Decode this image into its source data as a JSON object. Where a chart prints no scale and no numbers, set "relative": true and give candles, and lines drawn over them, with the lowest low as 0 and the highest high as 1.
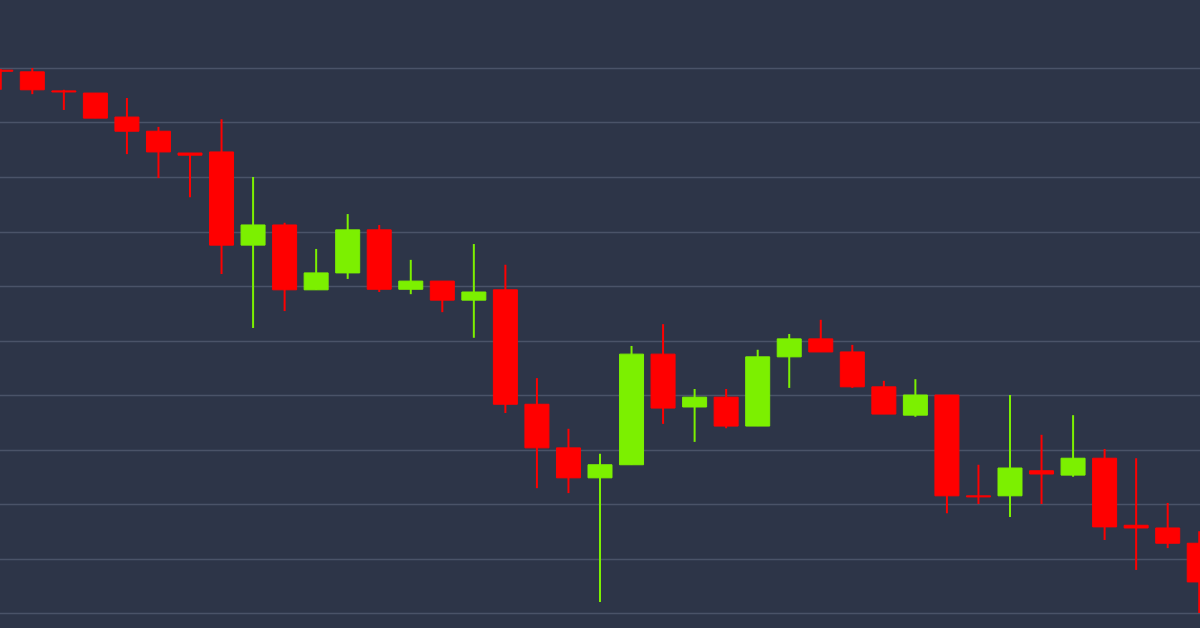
{
  "chart_data": {
    "type": "candlestick",
    "relative": true,
    "grid": "y",
    "categories": [
      null,
      null,
      null,
      null,
      null,
      null,
      null,
      null,
      null,
      null,
      null,
      null,
      null,
      null,
      null,
      null,
      null,
      null,
      null,
      null,
      null,
      null,
      null,
      null,
      null,
      null,
      null,
      null,
      null,
      null,
      null,
      null,
      null,
      null,
      null,
      null,
      null,
      null,
      null
    ],
    "ohlc": [
      [
        0.996,
        0.998,
        0.96,
        0.994
      ],
      [
        0.993,
        1,
        0.952,
        0.96
      ],
      [
        0.958,
        0.96,
        0.923,
        0.956
      ],
      [
        0.954,
        0.954,
        0.908,
        0.908
      ],
      [
        0.91,
        0.945,
        0.842,
        0.884
      ],
      [
        0.884,
        0.892,
        0.798,
        0.846
      ],
      [
        0.844,
        0.844,
        0.763,
        0.84
      ],
      [
        0.846,
        0.906,
        0.622,
        0.675
      ],
      [
        0.675,
        0.8,
        0.523,
        0.712
      ],
      [
        0.712,
        0.716,
        0.554,
        0.593
      ],
      [
        0.593,
        0.668,
        0.593,
        0.624
      ],
      [
        0.624,
        0.732,
        0.613,
        0.703
      ],
      [
        0.703,
        0.712,
        0.589,
        0.594
      ],
      [
        0.594,
        0.648,
        0.585,
        0.609
      ],
      [
        0.609,
        0.609,
        0.552,
        0.574
      ],
      [
        0.574,
        0.677,
        0.505,
        0.589
      ],
      [
        0.593,
        0.639,
        0.367,
        0.383
      ],
      [
        0.383,
        0.431,
        0.229,
        0.303
      ],
      [
        0.303,
        0.338,
        0.22,
        0.248
      ],
      [
        0.248,
        0.292,
        0.02,
        0.272
      ],
      [
        0.272,
        0.49,
        0.272,
        0.475
      ],
      [
        0.475,
        0.53,
        0.347,
        0.376
      ],
      [
        0.378,
        0.411,
        0.314,
        0.396
      ],
      [
        0.396,
        0.411,
        0.339,
        0.343
      ],
      [
        0.343,
        0.483,
        0.343,
        0.47
      ],
      [
        0.47,
        0.512,
        0.413,
        0.503
      ],
      [
        0.503,
        0.538,
        0.479,
        0.479
      ],
      [
        0.479,
        0.492,
        0.413,
        0.415
      ],
      [
        0.415,
        0.426,
        0.365,
        0.365
      ],
      [
        0.363,
        0.429,
        0.36,
        0.4
      ],
      [
        0.4,
        0.4,
        0.183,
        0.215
      ],
      [
        0.215,
        0.272,
        0.2,
        0.213
      ],
      [
        0.215,
        0.4,
        0.176,
        0.266
      ],
      [
        0.261,
        0.327,
        0.2,
        0.255
      ],
      [
        0.253,
        0.363,
        0.25,
        0.284
      ],
      [
        0.284,
        0.301,
        0.134,
        0.158
      ],
      [
        0.161,
        0.284,
        0.079,
        0.156
      ],
      [
        0.156,
        0.202,
        0.119,
        0.128
      ],
      [
        0.128,
        0.15,
        0,
        0.057
      ]
    ],
    "colors": [
      "#ff0000",
      "#ff0000",
      "#ff0000",
      "#ff0000",
      "#ff0000",
      "#ff0000",
      "#ff0000",
      "#ff0000",
      "#7cf000",
      "#ff0000",
      "#7cf000",
      "#7cf000",
      "#ff0000",
      "#7cf000",
      "#ff0000",
      "#7cf000",
      "#ff0000",
      "#ff0000",
      "#ff0000",
      "#7cf000",
      "#7cf000",
      "#ff0000",
      "#7cf000",
      "#ff0000",
      "#7cf000",
      "#7cf000",
      "#ff0000",
      "#ff0000",
      "#ff0000",
      "#7cf000",
      "#ff0000",
      "#ff0000",
      "#7cf000",
      "#ff0000",
      "#7cf000",
      "#ff0000",
      "#ff0000",
      "#ff0000",
      "#ff0000"
    ]
  }
}
